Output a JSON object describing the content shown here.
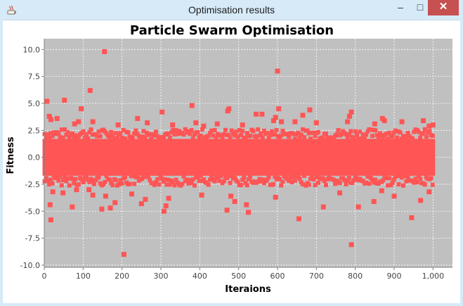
{
  "window": {
    "title": "Optimisation results",
    "controls": {
      "minimize": "–",
      "maximize": "□",
      "close": "✕"
    },
    "icon": "java-app-icon"
  },
  "colors": {
    "plot_background": "#c0c0c0",
    "grid": "#ffffff",
    "marker": "#ff5555",
    "titlebar": "#d6eaf8",
    "close_button": "#c75050"
  },
  "chart_data": {
    "type": "scatter",
    "title": "Particle Swarm Optimisation",
    "xlabel": "Iteraions",
    "ylabel": "Fitness",
    "xlim": [
      0,
      1050
    ],
    "ylim": [
      -10.2,
      11.0
    ],
    "xticks": [
      "0",
      "100",
      "200",
      "300",
      "400",
      "500",
      "600",
      "700",
      "800",
      "900",
      "1,000"
    ],
    "yticks": [
      "-10.0",
      "-7.5",
      "-5.0",
      "-2.5",
      "0.0",
      "2.5",
      "5.0",
      "7.5",
      "10.0"
    ],
    "grid": true,
    "legend": "none",
    "marker": "square",
    "series": [
      {
        "x_range": [
          1,
          1000
        ],
        "bulk_band": [
          -2.1,
          2.1
        ],
        "outliers": [
          {
            "x": 7,
            "y": 5.2
          },
          {
            "x": 13,
            "y": 3.8
          },
          {
            "x": 17,
            "y": 3.5
          },
          {
            "x": 33,
            "y": 3.6
          },
          {
            "x": 52,
            "y": 5.3
          },
          {
            "x": 78,
            "y": 3.1
          },
          {
            "x": 88,
            "y": 3.3
          },
          {
            "x": 95,
            "y": 4.5
          },
          {
            "x": 118,
            "y": 6.2
          },
          {
            "x": 125,
            "y": 3.3
          },
          {
            "x": 155,
            "y": 9.8
          },
          {
            "x": 190,
            "y": 3.0
          },
          {
            "x": 240,
            "y": 3.6
          },
          {
            "x": 265,
            "y": 3.2
          },
          {
            "x": 303,
            "y": 4.2
          },
          {
            "x": 330,
            "y": 3.0
          },
          {
            "x": 380,
            "y": 4.8
          },
          {
            "x": 390,
            "y": 3.2
          },
          {
            "x": 410,
            "y": 2.9
          },
          {
            "x": 445,
            "y": 3.1
          },
          {
            "x": 472,
            "y": 4.3
          },
          {
            "x": 475,
            "y": 4.5
          },
          {
            "x": 510,
            "y": 3.0
          },
          {
            "x": 545,
            "y": 4.0
          },
          {
            "x": 560,
            "y": 4.0
          },
          {
            "x": 590,
            "y": 3.4
          },
          {
            "x": 595,
            "y": 3.7
          },
          {
            "x": 600,
            "y": 8.0
          },
          {
            "x": 603,
            "y": 4.5
          },
          {
            "x": 610,
            "y": 3.3
          },
          {
            "x": 645,
            "y": 3.3
          },
          {
            "x": 665,
            "y": 3.9
          },
          {
            "x": 683,
            "y": 4.4
          },
          {
            "x": 700,
            "y": 3.2
          },
          {
            "x": 780,
            "y": 3.3
          },
          {
            "x": 785,
            "y": 3.8
          },
          {
            "x": 790,
            "y": 4.2
          },
          {
            "x": 850,
            "y": 3.1
          },
          {
            "x": 870,
            "y": 3.6
          },
          {
            "x": 875,
            "y": 3.4
          },
          {
            "x": 920,
            "y": 3.3
          },
          {
            "x": 975,
            "y": 3.4
          },
          {
            "x": 990,
            "y": 2.9
          },
          {
            "x": 1000,
            "y": 3.0
          },
          {
            "x": 15,
            "y": -4.4
          },
          {
            "x": 17,
            "y": -5.8
          },
          {
            "x": 22,
            "y": -3.2
          },
          {
            "x": 48,
            "y": -3.3
          },
          {
            "x": 72,
            "y": -4.6
          },
          {
            "x": 83,
            "y": -3.0
          },
          {
            "x": 115,
            "y": -3.0
          },
          {
            "x": 125,
            "y": -3.5
          },
          {
            "x": 148,
            "y": -4.8
          },
          {
            "x": 158,
            "y": -3.6
          },
          {
            "x": 170,
            "y": -4.7
          },
          {
            "x": 182,
            "y": -4.2
          },
          {
            "x": 205,
            "y": -9.0
          },
          {
            "x": 225,
            "y": -3.4
          },
          {
            "x": 250,
            "y": -4.3
          },
          {
            "x": 260,
            "y": -3.9
          },
          {
            "x": 308,
            "y": -5.0
          },
          {
            "x": 313,
            "y": -4.5
          },
          {
            "x": 320,
            "y": -3.8
          },
          {
            "x": 405,
            "y": -3.5
          },
          {
            "x": 470,
            "y": -4.9
          },
          {
            "x": 480,
            "y": -3.6
          },
          {
            "x": 490,
            "y": -4.1
          },
          {
            "x": 520,
            "y": -4.4
          },
          {
            "x": 525,
            "y": -5.1
          },
          {
            "x": 595,
            "y": -3.7
          },
          {
            "x": 655,
            "y": -5.7
          },
          {
            "x": 718,
            "y": -4.6
          },
          {
            "x": 760,
            "y": -3.3
          },
          {
            "x": 790,
            "y": -8.1
          },
          {
            "x": 808,
            "y": -4.6
          },
          {
            "x": 848,
            "y": -4.1
          },
          {
            "x": 868,
            "y": -3.1
          },
          {
            "x": 900,
            "y": -3.6
          },
          {
            "x": 945,
            "y": -5.6
          },
          {
            "x": 968,
            "y": -4.0
          },
          {
            "x": 990,
            "y": -3.2
          }
        ]
      }
    ]
  }
}
